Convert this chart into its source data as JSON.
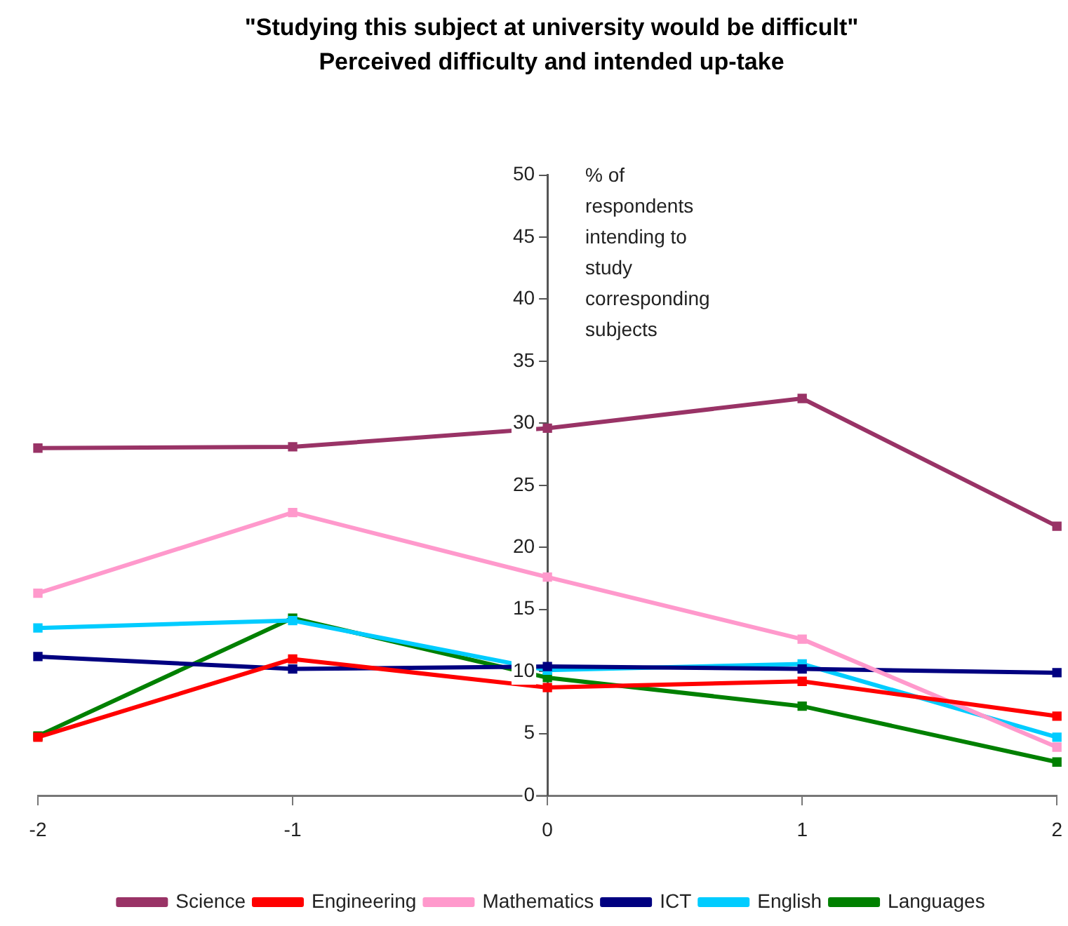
{
  "chart_data": {
    "type": "line",
    "title": "\"Studying this subject at university would be difficult\"",
    "subtitle": "Perceived difficulty and intended up-take",
    "ylabel": "% of respondents intending to study corresponding subjects",
    "x": [
      -2,
      -1,
      0,
      1,
      2
    ],
    "series": [
      {
        "name": "Science",
        "color": "#993366",
        "values": [
          28.0,
          28.1,
          29.6,
          32.0,
          21.7
        ]
      },
      {
        "name": "Engineering",
        "color": "#ff0000",
        "values": [
          4.7,
          11.0,
          8.7,
          9.2,
          6.4
        ]
      },
      {
        "name": "Mathematics",
        "color": "#ff99cc",
        "values": [
          16.3,
          22.8,
          17.6,
          12.6,
          3.9
        ]
      },
      {
        "name": "ICT",
        "color": "#000080",
        "values": [
          11.2,
          10.2,
          10.4,
          10.2,
          9.9
        ]
      },
      {
        "name": "English",
        "color": "#00ccff",
        "values": [
          13.5,
          14.1,
          10.1,
          10.6,
          4.7
        ]
      },
      {
        "name": "Languages",
        "color": "#008000",
        "values": [
          4.8,
          14.3,
          9.5,
          7.2,
          2.7
        ]
      }
    ],
    "xlim": [
      -2,
      2
    ],
    "xticks": [
      -2,
      -1,
      0,
      1,
      2
    ],
    "ylim": [
      0,
      50
    ],
    "yticks": [
      0,
      5,
      10,
      15,
      20,
      25,
      30,
      35,
      40,
      45,
      50
    ],
    "grid": false,
    "legend": "bottom",
    "marker": "square",
    "line_style": "solid"
  }
}
